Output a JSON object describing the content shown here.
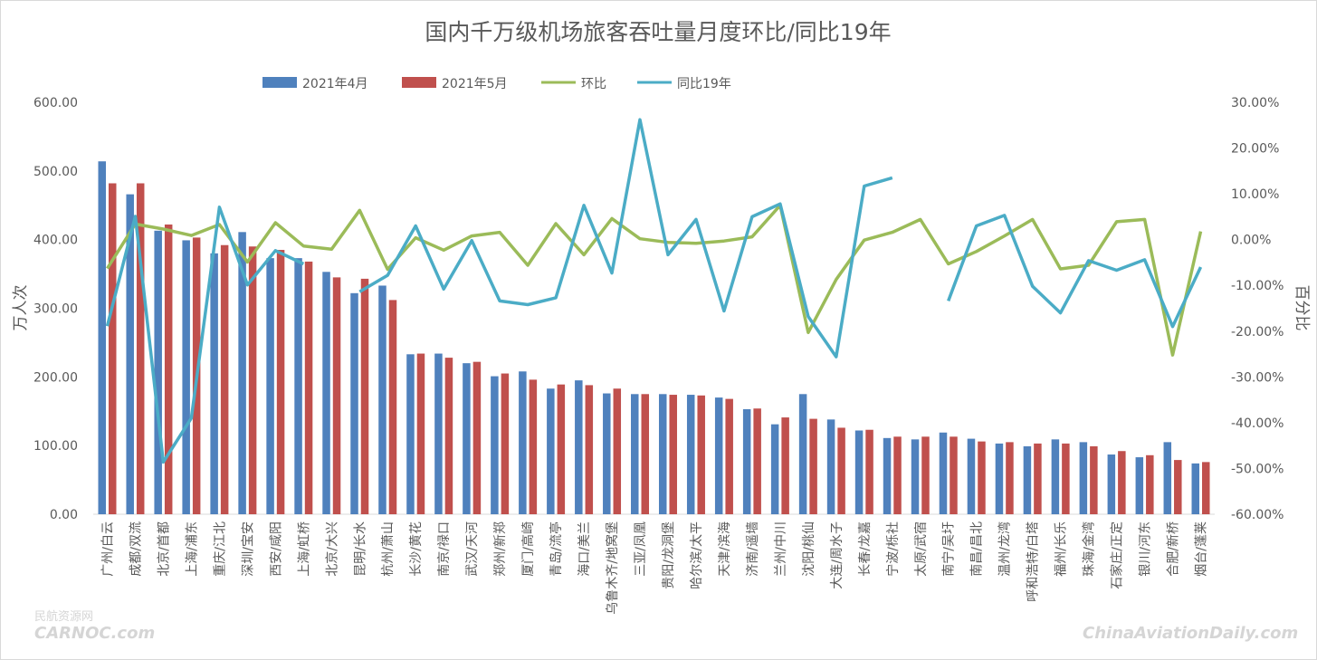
{
  "chart_data": {
    "type": "bar",
    "title": "国内千万级机场旅客吞吐量月度环比/同比19年",
    "ylabel": "万人次",
    "y2label": "百分比",
    "ylim": [
      0,
      600
    ],
    "y2lim": [
      -60,
      30
    ],
    "y_ticks": [
      "0.00",
      "100.00",
      "200.00",
      "300.00",
      "400.00",
      "500.00",
      "600.00"
    ],
    "y2_ticks": [
      "-60.00%",
      "-50.00%",
      "-40.00%",
      "-30.00%",
      "-20.00%",
      "-10.00%",
      "0.00%",
      "10.00%",
      "20.00%",
      "30.00%"
    ],
    "legend_position": "top",
    "categories": [
      "广州/白云",
      "成都/双流",
      "北京/首都",
      "上海/浦东",
      "重庆/江北",
      "深圳/宝安",
      "西安/咸阳",
      "上海/虹桥",
      "北京/大兴",
      "昆明/长水",
      "杭州/萧山",
      "长沙/黄花",
      "南京/禄口",
      "武汉/天河",
      "郑州/新郑",
      "厦门/高崎",
      "青岛/流亭",
      "海口/美兰",
      "乌鲁木齐/地窝堡",
      "三亚/凤凰",
      "贵阳/龙洞堡",
      "哈尔滨/太平",
      "天津/滨海",
      "济南/遥墙",
      "兰州/中川",
      "沈阳/桃仙",
      "大连/周水子",
      "长春/龙嘉",
      "宁波/栎社",
      "太原/武宿",
      "南宁/吴圩",
      "南昌/昌北",
      "温州/龙湾",
      "呼和浩特/白塔",
      "福州/长乐",
      "珠海/金湾",
      "石家庄/正定",
      "银川/河东",
      "合肥/新桥",
      "烟台/蓬莱"
    ],
    "series": [
      {
        "name": "2021年4月",
        "kind": "bar",
        "axis": "left",
        "color": "#4F81BD",
        "values": [
          514,
          466,
          413,
          399,
          380,
          411,
          373,
          373,
          353,
          322,
          333,
          233,
          234,
          220,
          201,
          208,
          183,
          195,
          176,
          175,
          175,
          174,
          170,
          153,
          131,
          175,
          138,
          122,
          111,
          109,
          119,
          110,
          103,
          99,
          109,
          105,
          87,
          83,
          105,
          74
        ]
      },
      {
        "name": "2021年5月",
        "kind": "bar",
        "axis": "left",
        "color": "#C0504D",
        "values": [
          482,
          482,
          422,
          403,
          392,
          390,
          385,
          368,
          345,
          343,
          312,
          234,
          228,
          222,
          205,
          196,
          189,
          188,
          183,
          175,
          174,
          173,
          168,
          154,
          141,
          139,
          126,
          123,
          113,
          113,
          113,
          106,
          105,
          103,
          103,
          99,
          92,
          86,
          79,
          76
        ]
      },
      {
        "name": "环比",
        "kind": "line",
        "axis": "right",
        "color": "#9BBB59",
        "values": [
          -6.3,
          3.4,
          2.3,
          0.9,
          3.3,
          -4.9,
          3.7,
          -1.4,
          -2.1,
          6.4,
          -6.5,
          0.4,
          -2.3,
          0.8,
          1.6,
          -5.6,
          3.5,
          -3.3,
          4.6,
          0.2,
          -0.6,
          -0.8,
          -0.3,
          0.6,
          7.5,
          -20.3,
          -8.7,
          -0.1,
          1.6,
          4.4,
          -5.3,
          -2.6,
          0.8,
          4.4,
          -6.4,
          -5.6,
          3.9,
          4.4,
          -25.2,
          1.8
        ]
      },
      {
        "name": "同比19年",
        "kind": "line",
        "axis": "right",
        "color": "#4BACC6",
        "values": [
          -18.9,
          5.1,
          -48.6,
          -39.0,
          7.1,
          -9.9,
          -2.4,
          -5.3,
          null,
          -11.4,
          -7.8,
          3.0,
          -10.8,
          -0.2,
          -13.4,
          -14.2,
          -12.7,
          7.5,
          -7.3,
          26.2,
          -3.3,
          4.4,
          -15.6,
          5.0,
          7.8,
          -16.8,
          -25.6,
          11.7,
          13.5,
          null,
          -13.4,
          3.0,
          5.3,
          -10.2,
          -16.0,
          -4.6,
          -6.7,
          -4.4,
          -19.0,
          -6.0
        ]
      }
    ]
  },
  "watermarks": {
    "left_text": "民航资源网",
    "left_logo": "CARNOC.com",
    "right_text": "ChinaAviationDaily.com"
  }
}
